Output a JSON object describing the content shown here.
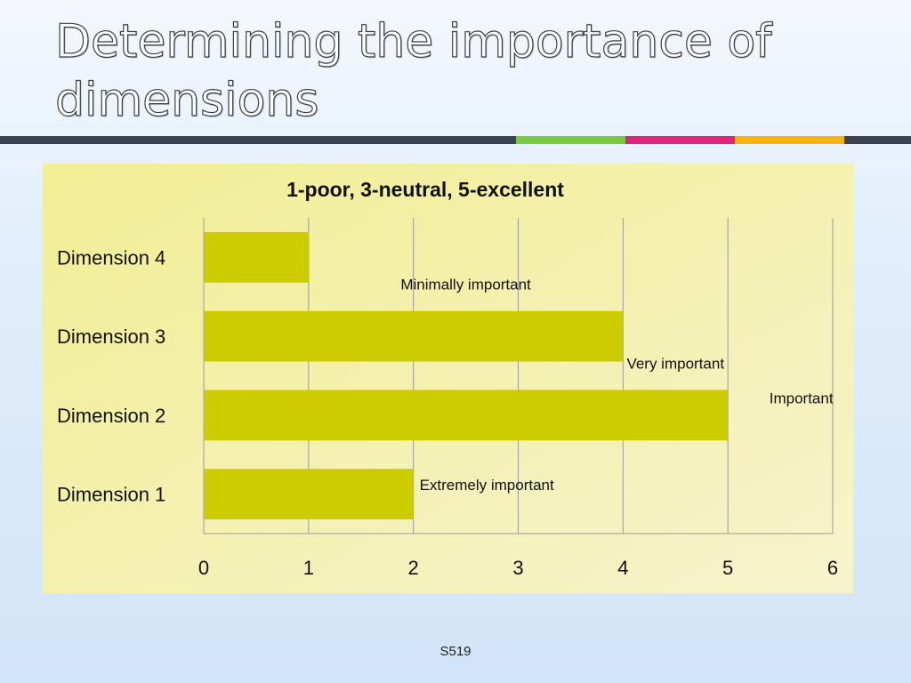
{
  "slide": {
    "title": "Determining the importance of dimensions",
    "footer": "S519",
    "rule_colors": [
      "#3b4250",
      "#7ac943",
      "#e0237b",
      "#f7b30f",
      "#3b4250"
    ]
  },
  "chart_data": {
    "type": "bar",
    "orientation": "horizontal",
    "title": "1-poor, 3-neutral, 5-excellent",
    "categories": [
      "Dimension 4",
      "Dimension 3",
      "Dimension 2",
      "Dimension 1"
    ],
    "values": [
      1,
      4,
      5,
      2
    ],
    "xlim": [
      0,
      6
    ],
    "xticks": [
      "0",
      "1",
      "2",
      "3",
      "4",
      "5",
      "6"
    ],
    "annotations": [
      "Minimally important",
      "Very important",
      "Important",
      "Extremely important"
    ],
    "grid": true,
    "bar_color": "#cccc00",
    "background_color": "#f3f0a8"
  }
}
